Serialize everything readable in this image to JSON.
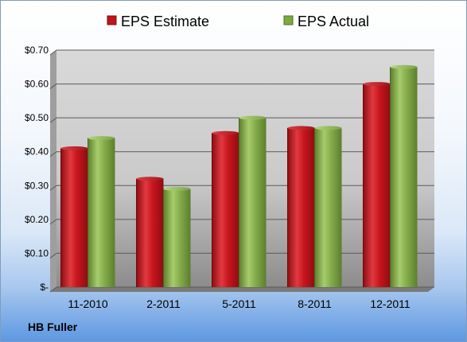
{
  "company_label": "HB Fuller",
  "colors": {
    "estimate": "#c0141c",
    "actual": "#7ea845",
    "plot_top": "#d4d4d4",
    "plot_bottom": "#8a8a8a"
  },
  "chart_data": {
    "type": "bar",
    "categories": [
      "11-2010",
      "2-2011",
      "5-2011",
      "8-2011",
      "12-2011"
    ],
    "series": [
      {
        "name": "EPS Estimate",
        "values": [
          0.41,
          0.32,
          0.455,
          0.47,
          0.6
        ]
      },
      {
        "name": "EPS Actual",
        "values": [
          0.44,
          0.29,
          0.5,
          0.47,
          0.65
        ]
      }
    ],
    "ylim": [
      0,
      0.7
    ],
    "yticks": [
      0,
      0.1,
      0.2,
      0.3,
      0.4,
      0.5,
      0.6,
      0.7
    ],
    "ytick_labels": [
      "$-",
      "$0.10",
      "$0.20",
      "$0.30",
      "$0.40",
      "$0.50",
      "$0.60",
      "$0.70"
    ],
    "legend_position": "top",
    "grid": true,
    "title": "",
    "xlabel": "",
    "ylabel": ""
  }
}
